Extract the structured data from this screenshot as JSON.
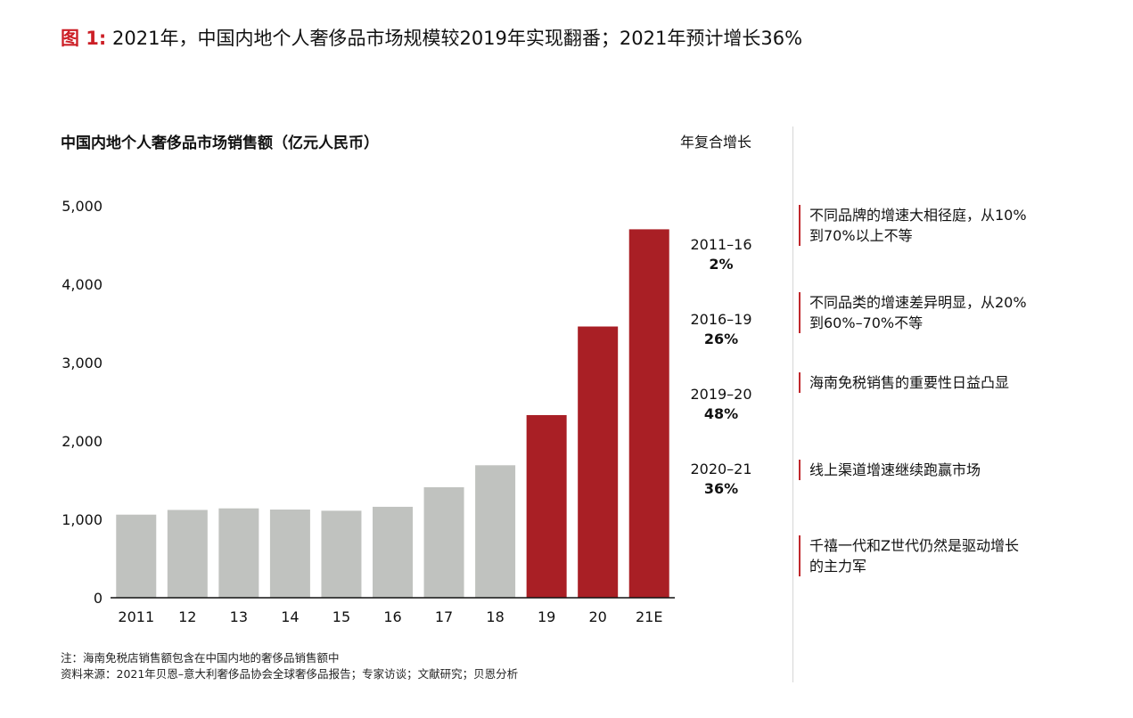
{
  "figure": {
    "label": "图 1:",
    "title": "2021年，中国内地个人奢侈品市场规模较2019年实现翻番；2021年预计增长36%"
  },
  "chart_data": {
    "type": "bar",
    "title": "中国内地个人奢侈品市场销售额（亿元人民币）",
    "xlabel": "",
    "ylabel": "",
    "categories": [
      "2011",
      "12",
      "13",
      "14",
      "15",
      "16",
      "17",
      "18",
      "19",
      "20",
      "21E"
    ],
    "values": [
      1060,
      1120,
      1140,
      1125,
      1110,
      1160,
      1410,
      1690,
      2330,
      3460,
      4700
    ],
    "highlighted": [
      false,
      false,
      false,
      false,
      false,
      false,
      false,
      false,
      true,
      true,
      true
    ],
    "ylim": [
      0,
      5000
    ],
    "yticks": [
      0,
      1000,
      2000,
      3000,
      4000,
      5000
    ],
    "ytick_labels": [
      "0",
      "1,000",
      "2,000",
      "3,000",
      "4,000",
      "5,000"
    ],
    "grid": false,
    "colors": {
      "base": "#c0c2bf",
      "highlight": "#a91f25",
      "axis": "#111111"
    }
  },
  "cagr": {
    "title": "年复合增长",
    "items": [
      {
        "period": "2011–16",
        "rate": "2%"
      },
      {
        "period": "2016–19",
        "rate": "26%"
      },
      {
        "period": "2019–20",
        "rate": "48%"
      },
      {
        "period": "2020–21",
        "rate": "36%"
      }
    ]
  },
  "notes": [
    {
      "text": "不同品牌的增速大相径庭，从10%到70%以上不等"
    },
    {
      "text": "不同品类的增速差异明显，从20%到60%–70%不等"
    },
    {
      "text": "海南免税销售的重要性日益凸显"
    },
    {
      "text": "线上渠道增速继续跑赢市场"
    },
    {
      "text": "千禧一代和Z世代仍然是驱动增长的主力军"
    }
  ],
  "footnote": {
    "note": "注：海南免税店销售额包含在中国内地的奢侈品销售额中",
    "source": "资料来源：2021年贝恩–意大利奢侈品协会全球奢侈品报告；专家访谈；文献研究；贝恩分析"
  },
  "colors": {
    "accent": "#cc1f26",
    "separator": "#d6d6d6"
  }
}
